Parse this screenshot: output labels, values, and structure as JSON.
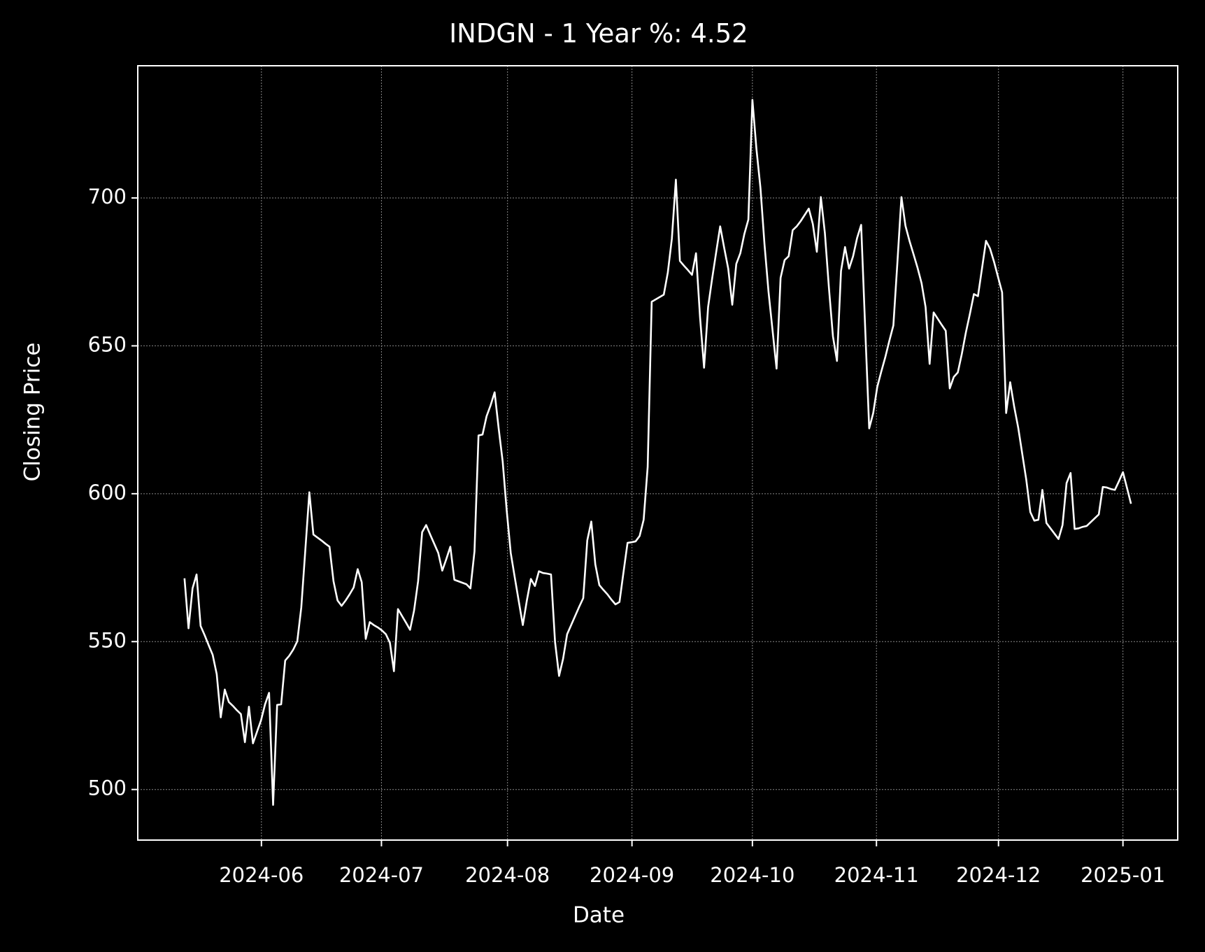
{
  "chart_data": {
    "type": "line",
    "title": "INDGN - 1 Year %: 4.52",
    "x_label": "Date",
    "y_label": "Closing Price",
    "series": [
      {
        "name": "Closing Price",
        "color": "#ffffff",
        "values": [
          571.4,
          554.5,
          568,
          572.7,
          555.3,
          552.2,
          548.8,
          545.5,
          539,
          524.4,
          533.8,
          529.6,
          528.3,
          526.8,
          525.5,
          516,
          528,
          515.6,
          519.5,
          523.4,
          528.8,
          532.7,
          494.8,
          528.6,
          528.8,
          543.6,
          545.2,
          547.3,
          550.1,
          561.6,
          581,
          600.5,
          586.2,
          585.2,
          584.2,
          583.1,
          582.1,
          570.4,
          563.9,
          562.1,
          563.9,
          566,
          568.3,
          574.5,
          570.1,
          550.9,
          556.6,
          555.6,
          554.8,
          553.8,
          552.5,
          549.6,
          540,
          561,
          558.7,
          556.4,
          554,
          560.5,
          570.4,
          587,
          589.4,
          586.2,
          583.1,
          580,
          574,
          577.9,
          582.1,
          570.9,
          570.4,
          569.9,
          569.4,
          568,
          580.5,
          619.7,
          620,
          626.2,
          629.9,
          634.3,
          622.1,
          610.9,
          594.3,
          580,
          571.7,
          563.6,
          555.6,
          563.9,
          571.2,
          568.8,
          573.8,
          573.2,
          573,
          572.7,
          549.9,
          538.4,
          544.2,
          552.5,
          555.6,
          558.7,
          561.8,
          564.7,
          584.2,
          590.6,
          576.1,
          569.1,
          567.5,
          566,
          564.2,
          562.6,
          563.4,
          573.5,
          583.4,
          583.6,
          583.9,
          585.7,
          591.2,
          609.1,
          664.9,
          665.7,
          666.5,
          667.3,
          674.8,
          686.2,
          706.2,
          678.7,
          677.1,
          675.6,
          674,
          681.3,
          659.7,
          642.6,
          663.1,
          672.7,
          681.6,
          690.4,
          683.1,
          676.1,
          663.9,
          677.7,
          681.3,
          687.8,
          692.7,
          733.2,
          716.6,
          703.4,
          684.4,
          668.3,
          655.3,
          642.3,
          673,
          679,
          680.3,
          689.1,
          690.4,
          692.2,
          694.3,
          696.4,
          691.2,
          681.8,
          700.3,
          688.1,
          669.6,
          653.2,
          644.9,
          675.3,
          683.4,
          676.1,
          680.3,
          686.5,
          690.9,
          656.1,
          622.1,
          627.3,
          636.1,
          641.3,
          646.2,
          651.7,
          656.9,
          678.2,
          700.3,
          690.6,
          685.5,
          681,
          676.4,
          671.2,
          663.1,
          643.9,
          661.3,
          659.2,
          657.1,
          655.1,
          635.6,
          639.5,
          641,
          647.3,
          654.5,
          660.8,
          667.5,
          666.8,
          676.1,
          685.5,
          682.9,
          678.4,
          673.2,
          668.1,
          627.3,
          637.7,
          629.4,
          622.3,
          613.5,
          604.7,
          593.8,
          590.9,
          591.2,
          601.3,
          590.1,
          588.3,
          586.5,
          584.7,
          589.4,
          603.6,
          607,
          588.1,
          588.3,
          588.8,
          589.1,
          590.4,
          591.7,
          593,
          602.3,
          602.1,
          601.6,
          601.3,
          604.2,
          607.3,
          602,
          596.6
        ]
      }
    ],
    "xlim": [
      -11.6,
      246.6
    ],
    "xticks": [
      {
        "value": 19.1,
        "label": "2024-06"
      },
      {
        "value": 48.9,
        "label": "2024-07"
      },
      {
        "value": 80.2,
        "label": "2024-08"
      },
      {
        "value": 111.1,
        "label": "2024-09"
      },
      {
        "value": 141.0,
        "label": "2024-10"
      },
      {
        "value": 171.8,
        "label": "2024-11"
      },
      {
        "value": 202.1,
        "label": "2024-12"
      },
      {
        "value": 233.0,
        "label": "2025-01"
      }
    ],
    "ylim": [
      482.9,
      744.7
    ],
    "yticks": [
      500,
      550,
      600,
      650,
      700
    ],
    "grid": true
  }
}
